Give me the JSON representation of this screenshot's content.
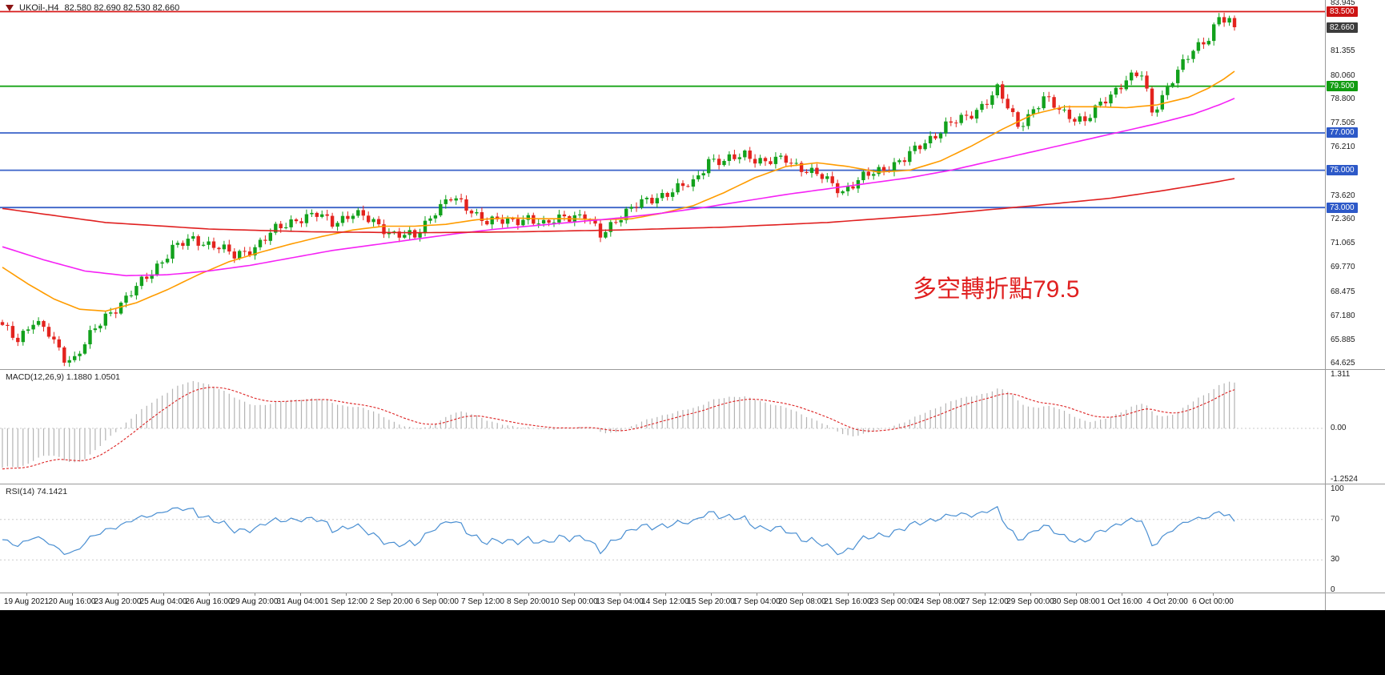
{
  "title": {
    "symbol": "UKOil-,H4",
    "ohlc": "82.580 82.690 82.530 82.660"
  },
  "annotation": {
    "text": "多空轉折點79.5",
    "color": "#e02020"
  },
  "macd": {
    "label": "MACD(12,26,9) 1.1880 1.0501"
  },
  "rsi": {
    "label": "RSI(14) 74.1421"
  },
  "main_axis": {
    "labels": [
      {
        "text": "83.945",
        "value": 83.945
      },
      {
        "text": "81.355",
        "value": 81.355
      },
      {
        "text": "80.060",
        "value": 80.06
      },
      {
        "text": "78.800",
        "value": 78.8
      },
      {
        "text": "77.505",
        "value": 77.505
      },
      {
        "text": "76.210",
        "value": 76.21
      },
      {
        "text": "73.620",
        "value": 73.62
      },
      {
        "text": "72.360",
        "value": 72.36
      },
      {
        "text": "71.065",
        "value": 71.065
      },
      {
        "text": "69.770",
        "value": 69.77
      },
      {
        "text": "68.475",
        "value": 68.475
      },
      {
        "text": "67.180",
        "value": 67.18
      },
      {
        "text": "65.885",
        "value": 65.885
      },
      {
        "text": "64.625",
        "value": 64.625
      }
    ],
    "badges": [
      {
        "text": "83.500",
        "value": 83.5,
        "color": "#cc1414"
      },
      {
        "text": "82.660",
        "value": 82.66,
        "color": "#3c3c3c"
      },
      {
        "text": "79.500",
        "value": 79.5,
        "color": "#109c10"
      },
      {
        "text": "77.000",
        "value": 77.0,
        "color": "#2d59c8"
      },
      {
        "text": "75.000",
        "value": 75.0,
        "color": "#2d59c8"
      },
      {
        "text": "73.000",
        "value": 73.0,
        "color": "#2d59c8"
      }
    ]
  },
  "macd_axis": [
    {
      "text": "1.311",
      "value": 1.311
    },
    {
      "text": "0.00",
      "value": 0
    },
    {
      "text": "-1.2524",
      "value": -1.2524
    }
  ],
  "rsi_axis": [
    {
      "text": "100",
      "value": 100
    },
    {
      "text": "70",
      "value": 70
    },
    {
      "text": "30",
      "value": 30
    },
    {
      "text": "0",
      "value": 0
    }
  ],
  "time_axis": {
    "labels": [
      "19 Aug 2021",
      "20 Aug 16:00",
      "23 Aug 20:00",
      "25 Aug 04:00",
      "26 Aug 16:00",
      "29 Aug 20:00",
      "31 Aug 04:00",
      "1 Sep 12:00",
      "2 Sep 20:00",
      "6 Sep 00:00",
      "7 Sep 12:00",
      "8 Sep 20:00",
      "10 Sep 00:00",
      "13 Sep 04:00",
      "14 Sep 12:00",
      "15 Sep 20:00",
      "17 Sep 04:00",
      "20 Sep 08:00",
      "21 Sep 16:00",
      "23 Sep 00:00",
      "24 Sep 08:00",
      "27 Sep 12:00",
      "29 Sep 00:00",
      "30 Sep 08:00",
      "1 Oct 16:00",
      "4 Oct 20:00",
      "6 Oct 00:00"
    ]
  },
  "chart_data": {
    "type": "candlestick",
    "symbol": "UKOil-",
    "timeframe": "H4",
    "current_ohlc": {
      "open": 82.58,
      "high": 82.69,
      "low": 82.53,
      "close": 82.66
    },
    "num_candles": 240,
    "price_range": [
      64.3,
      84.12
    ],
    "up_color": "#12a11c",
    "down_color": "#e3231e",
    "close_anchors": [
      [
        0,
        66.6
      ],
      [
        3,
        66.0
      ],
      [
        6,
        66.9
      ],
      [
        9,
        66.2
      ],
      [
        12,
        65.0
      ],
      [
        14,
        64.9
      ],
      [
        17,
        66.1
      ],
      [
        20,
        67.2
      ],
      [
        24,
        68.1
      ],
      [
        28,
        69.3
      ],
      [
        33,
        70.8
      ],
      [
        37,
        71.3
      ],
      [
        41,
        71.0
      ],
      [
        45,
        70.4
      ],
      [
        49,
        70.9
      ],
      [
        53,
        71.8
      ],
      [
        57,
        72.4
      ],
      [
        61,
        72.6
      ],
      [
        64,
        72.2
      ],
      [
        68,
        72.7
      ],
      [
        72,
        72.2
      ],
      [
        76,
        71.6
      ],
      [
        80,
        71.4
      ],
      [
        84,
        72.9
      ],
      [
        87,
        73.5
      ],
      [
        90,
        73.0
      ],
      [
        94,
        72.3
      ],
      [
        98,
        72.2
      ],
      [
        102,
        72.5
      ],
      [
        105,
        72.0
      ],
      [
        109,
        72.6
      ],
      [
        113,
        72.5
      ],
      [
        116,
        71.5
      ],
      [
        119,
        72.4
      ],
      [
        123,
        73.1
      ],
      [
        127,
        73.6
      ],
      [
        131,
        74.0
      ],
      [
        134,
        74.3
      ],
      [
        137,
        75.6
      ],
      [
        140,
        75.4
      ],
      [
        144,
        75.9
      ],
      [
        148,
        75.4
      ],
      [
        152,
        75.6
      ],
      [
        156,
        75.0
      ],
      [
        159,
        74.6
      ],
      [
        163,
        73.9
      ],
      [
        167,
        74.6
      ],
      [
        171,
        75.1
      ],
      [
        175,
        75.6
      ],
      [
        179,
        76.5
      ],
      [
        183,
        77.4
      ],
      [
        187,
        77.8
      ],
      [
        190,
        78.5
      ],
      [
        193,
        79.3
      ],
      [
        197,
        77.4
      ],
      [
        202,
        78.8
      ],
      [
        206,
        78.1
      ],
      [
        210,
        77.6
      ],
      [
        214,
        78.8
      ],
      [
        218,
        79.9
      ],
      [
        221,
        80.1
      ],
      [
        223,
        78.1
      ],
      [
        227,
        79.9
      ],
      [
        231,
        81.4
      ],
      [
        234,
        82.2
      ],
      [
        236,
        83.2
      ],
      [
        238,
        82.9
      ],
      [
        239,
        82.66
      ]
    ],
    "levels": [
      {
        "value": 83.5,
        "color": "#d81a1a"
      },
      {
        "value": 79.5,
        "color": "#16a316"
      },
      {
        "value": 77.0,
        "color": "#3a62c8"
      },
      {
        "value": 75.0,
        "color": "#3a62c8"
      },
      {
        "value": 73.0,
        "color": "#3a62c8"
      }
    ],
    "moving_averages": [
      {
        "name": "fast-ma",
        "color": "#ff9c00",
        "anchors": [
          [
            0,
            69.8
          ],
          [
            5,
            68.9
          ],
          [
            10,
            68.1
          ],
          [
            15,
            67.55
          ],
          [
            20,
            67.45
          ],
          [
            26,
            67.9
          ],
          [
            32,
            68.6
          ],
          [
            38,
            69.4
          ],
          [
            44,
            70.1
          ],
          [
            50,
            70.6
          ],
          [
            56,
            71.05
          ],
          [
            62,
            71.45
          ],
          [
            68,
            71.8
          ],
          [
            74,
            72.0
          ],
          [
            80,
            72.0
          ],
          [
            86,
            72.1
          ],
          [
            92,
            72.35
          ],
          [
            98,
            72.45
          ],
          [
            104,
            72.4
          ],
          [
            110,
            72.4
          ],
          [
            116,
            72.35
          ],
          [
            122,
            72.4
          ],
          [
            128,
            72.7
          ],
          [
            134,
            73.1
          ],
          [
            140,
            73.8
          ],
          [
            146,
            74.6
          ],
          [
            152,
            75.2
          ],
          [
            158,
            75.4
          ],
          [
            164,
            75.2
          ],
          [
            170,
            74.9
          ],
          [
            176,
            75.0
          ],
          [
            182,
            75.5
          ],
          [
            188,
            76.3
          ],
          [
            194,
            77.2
          ],
          [
            200,
            78.0
          ],
          [
            206,
            78.4
          ],
          [
            212,
            78.4
          ],
          [
            218,
            78.35
          ],
          [
            224,
            78.5
          ],
          [
            230,
            78.9
          ],
          [
            234,
            79.4
          ],
          [
            237,
            79.9
          ],
          [
            239,
            80.3
          ]
        ]
      },
      {
        "name": "mid-ma",
        "color": "#f522f5",
        "anchors": [
          [
            0,
            70.9
          ],
          [
            8,
            70.2
          ],
          [
            16,
            69.6
          ],
          [
            24,
            69.35
          ],
          [
            32,
            69.4
          ],
          [
            40,
            69.6
          ],
          [
            48,
            69.9
          ],
          [
            56,
            70.3
          ],
          [
            64,
            70.7
          ],
          [
            72,
            71.0
          ],
          [
            80,
            71.3
          ],
          [
            88,
            71.6
          ],
          [
            96,
            71.85
          ],
          [
            104,
            72.05
          ],
          [
            112,
            72.25
          ],
          [
            120,
            72.45
          ],
          [
            128,
            72.7
          ],
          [
            136,
            73.0
          ],
          [
            144,
            73.35
          ],
          [
            152,
            73.7
          ],
          [
            160,
            74.0
          ],
          [
            168,
            74.3
          ],
          [
            176,
            74.6
          ],
          [
            184,
            75.0
          ],
          [
            192,
            75.5
          ],
          [
            200,
            76.0
          ],
          [
            208,
            76.5
          ],
          [
            216,
            77.0
          ],
          [
            224,
            77.5
          ],
          [
            231,
            78.0
          ],
          [
            236,
            78.5
          ],
          [
            239,
            78.85
          ]
        ]
      },
      {
        "name": "slow-ma",
        "color": "#e02020",
        "anchors": [
          [
            0,
            72.95
          ],
          [
            20,
            72.2
          ],
          [
            40,
            71.85
          ],
          [
            60,
            71.7
          ],
          [
            80,
            71.65
          ],
          [
            100,
            71.7
          ],
          [
            120,
            71.8
          ],
          [
            140,
            71.95
          ],
          [
            160,
            72.2
          ],
          [
            180,
            72.6
          ],
          [
            200,
            73.1
          ],
          [
            215,
            73.5
          ],
          [
            225,
            73.9
          ],
          [
            235,
            74.35
          ],
          [
            239,
            74.55
          ]
        ]
      }
    ],
    "macd": {
      "fast": 12,
      "slow": 26,
      "signal": 9,
      "current_main": 1.188,
      "current_signal": 1.0501,
      "scale_max": 1.311,
      "scale_min": -1.2524,
      "seed_ema": [
        67.2,
        68.2
      ],
      "histogram_color": "#b4b4b4",
      "signal_color": "#dd2222"
    },
    "rsi": {
      "period": 14,
      "current": 74.1421,
      "levels": [
        70,
        30
      ],
      "line_color": "#4a8fd2",
      "scale": [
        0,
        100
      ]
    }
  }
}
